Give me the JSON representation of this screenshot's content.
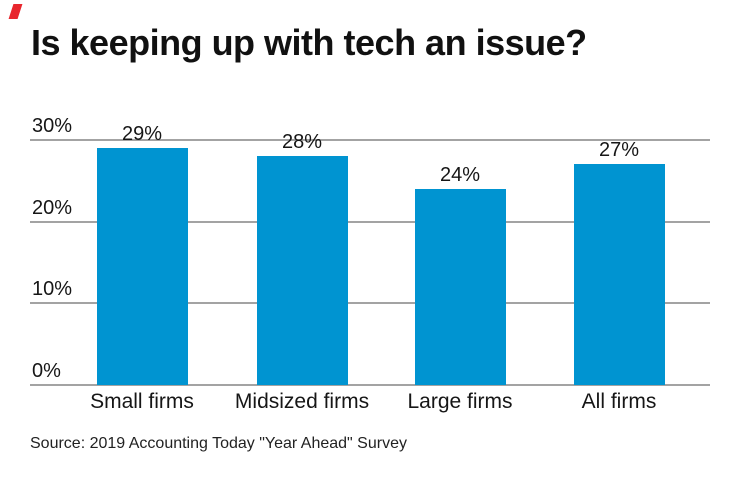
{
  "brand": {
    "slash_mark_color": "#e8262d"
  },
  "chart_data": {
    "type": "bar",
    "title": "Is keeping up with tech an issue?",
    "categories": [
      "Small firms",
      "Midsized firms",
      "Large firms",
      "All firms"
    ],
    "values": [
      29,
      28,
      24,
      27
    ],
    "value_labels": [
      "29%",
      "28%",
      "24%",
      "27%"
    ],
    "y_ticks": [
      0,
      10,
      20,
      30
    ],
    "y_tick_labels": [
      "0%",
      "10%",
      "20%",
      "30%"
    ],
    "ylim": [
      0,
      30
    ],
    "xlabel": "",
    "ylabel": "",
    "grid": true,
    "legend": "none",
    "bar_color": "#0094d1",
    "gridline_color": "#a3a3a3",
    "source": "Source: 2019 Accounting Today \"Year Ahead\" Survey"
  }
}
